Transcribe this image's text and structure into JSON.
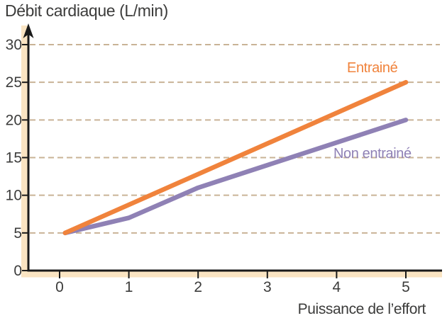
{
  "chart_data": {
    "type": "line",
    "title": "Débit cardiaque (L/min)",
    "xlabel": "Puissance de l’effort",
    "ylabel": "Débit cardiaque (L/min)",
    "x_ticks": [
      0,
      1,
      2,
      3,
      4,
      5
    ],
    "y_ticks": [
      0,
      5,
      10,
      15,
      20,
      25,
      30
    ],
    "grid_values": [
      5,
      10,
      15,
      20,
      25,
      30
    ],
    "xlim": [
      0,
      5.5
    ],
    "ylim": [
      0,
      33
    ],
    "grid": "horizontal-dashed",
    "legend_position": "inline-labels",
    "series": [
      {
        "id": "entraine",
        "name": "Entrainé",
        "color": "#F0833C",
        "points": [
          [
            0.08,
            5
          ],
          [
            5,
            25
          ]
        ]
      },
      {
        "id": "non-entraine",
        "name": "Non entrainé",
        "color": "#8F81B5",
        "points": [
          [
            0.08,
            5
          ],
          [
            1,
            7
          ],
          [
            2,
            11
          ],
          [
            5,
            20
          ]
        ]
      }
    ],
    "colors": {
      "grid": "#C9B396",
      "axis": "#1A1A1A",
      "band": "#FAE4C2",
      "text": "#3C3C3B"
    }
  }
}
